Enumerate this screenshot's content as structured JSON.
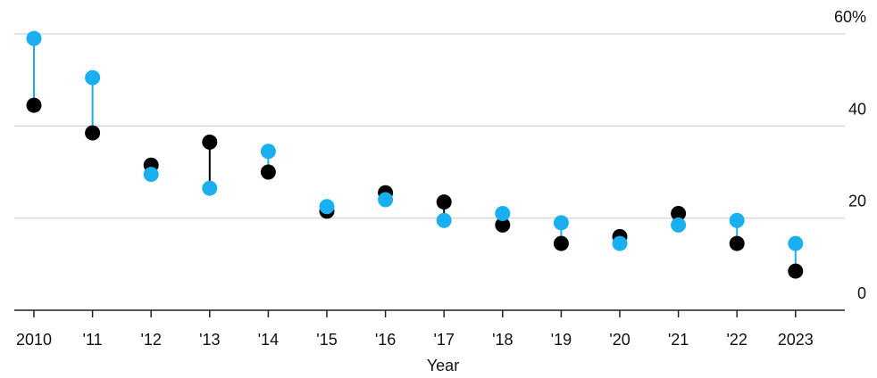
{
  "chart_data": {
    "type": "scatter",
    "title": "",
    "xlabel": "Year",
    "ylabel": "",
    "ylim": [
      0,
      60
    ],
    "y_ticks": [
      0,
      20,
      40,
      60
    ],
    "y_tick_labels": [
      "0",
      "20",
      "40",
      "60%"
    ],
    "y_axis_side": "right",
    "grid": true,
    "categories": [
      "2010",
      "'11",
      "'12",
      "'13",
      "'14",
      "'15",
      "'16",
      "'17",
      "'18",
      "'19",
      "'20",
      "'21",
      "'22",
      "2023"
    ],
    "series": [
      {
        "values": [
          44.5,
          38.5,
          31.5,
          36.5,
          30,
          21.5,
          25.5,
          23.5,
          18.5,
          14.5,
          16,
          21,
          14.5,
          8.5
        ],
        "color": "#000000"
      },
      {
        "values": [
          59,
          50.5,
          29.5,
          26.5,
          34.5,
          22.5,
          24,
          19.5,
          21,
          19,
          14.5,
          18.5,
          19.5,
          14.5
        ],
        "color": "#1ab0f0"
      }
    ],
    "connector": "vertical line between the two points of each year, colored like the higher point"
  }
}
